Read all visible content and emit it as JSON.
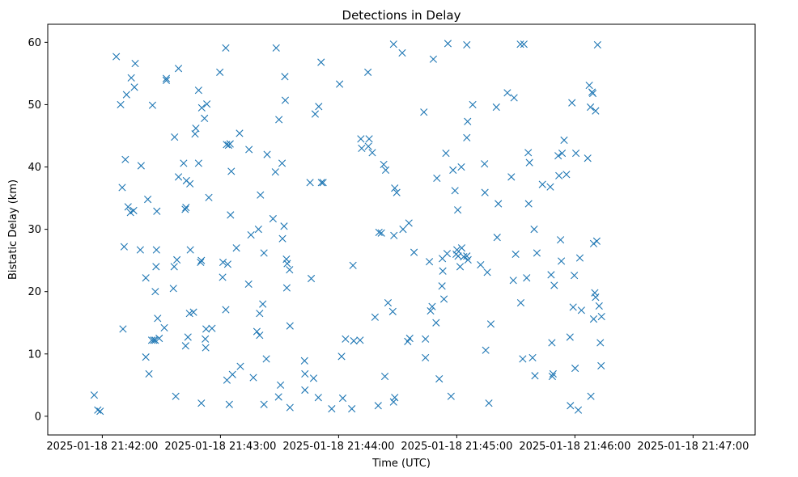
{
  "chart_data": {
    "type": "scatter",
    "title": "Detections in Delay",
    "xlabel": "Time (UTC)",
    "ylabel": "Bistatic Delay (km)",
    "marker": "x",
    "color": "#1f77b4",
    "x_unit": "seconds after 2025-01-18 21:42:00",
    "xlim": [
      -27.7,
      331.5
    ],
    "ylim": [
      -3.0,
      62.9
    ],
    "x_ticks": [
      {
        "value": 0,
        "label": "2025-01-18 21:42:00"
      },
      {
        "value": 60,
        "label": "2025-01-18 21:43:00"
      },
      {
        "value": 120,
        "label": "2025-01-18 21:44:00"
      },
      {
        "value": 180,
        "label": "2025-01-18 21:45:00"
      },
      {
        "value": 240,
        "label": "2025-01-18 21:46:00"
      },
      {
        "value": 300,
        "label": "2025-01-18 21:47:00"
      }
    ],
    "y_ticks": [
      {
        "value": 0,
        "label": "0"
      },
      {
        "value": 10,
        "label": "10"
      },
      {
        "value": 20,
        "label": "20"
      },
      {
        "value": 30,
        "label": "30"
      },
      {
        "value": 40,
        "label": "40"
      },
      {
        "value": 50,
        "label": "50"
      },
      {
        "value": 60,
        "label": "60"
      }
    ],
    "points": [
      [
        -4.1,
        3.4
      ],
      [
        -2.3,
        1.0
      ],
      [
        -1.1,
        0.8
      ],
      [
        7.1,
        57.7
      ],
      [
        9.3,
        50.0
      ],
      [
        10.1,
        36.7
      ],
      [
        10.5,
        14.0
      ],
      [
        11.1,
        27.2
      ],
      [
        11.7,
        41.2
      ],
      [
        12.3,
        51.6
      ],
      [
        13.1,
        33.6
      ],
      [
        14.3,
        32.7
      ],
      [
        14.7,
        54.3
      ],
      [
        15.9,
        33.0
      ],
      [
        16.7,
        56.6
      ],
      [
        16.3,
        52.8
      ],
      [
        19.3,
        26.7
      ],
      [
        19.7,
        40.2
      ],
      [
        22.1,
        9.5
      ],
      [
        22.1,
        22.2
      ],
      [
        23.1,
        34.8
      ],
      [
        23.7,
        6.8
      ],
      [
        25.1,
        12.2
      ],
      [
        25.5,
        49.9
      ],
      [
        26.1,
        12.2
      ],
      [
        26.9,
        12.2
      ],
      [
        26.9,
        20.0
      ],
      [
        27.3,
        24.0
      ],
      [
        27.5,
        26.7
      ],
      [
        27.7,
        32.9
      ],
      [
        28.1,
        15.7
      ],
      [
        28.9,
        12.5
      ],
      [
        31.5,
        14.2
      ],
      [
        32.5,
        54.2
      ],
      [
        32.5,
        53.9
      ],
      [
        36.1,
        20.5
      ],
      [
        36.5,
        24.0
      ],
      [
        36.7,
        44.8
      ],
      [
        37.3,
        3.2
      ],
      [
        37.9,
        25.1
      ],
      [
        38.7,
        38.4
      ],
      [
        38.7,
        55.8
      ],
      [
        41.3,
        40.6
      ],
      [
        42.1,
        33.2
      ],
      [
        42.3,
        11.3
      ],
      [
        42.5,
        33.5
      ],
      [
        42.7,
        37.8
      ],
      [
        43.5,
        12.7
      ],
      [
        44.3,
        16.5
      ],
      [
        44.5,
        37.3
      ],
      [
        44.7,
        26.7
      ],
      [
        46.3,
        16.7
      ],
      [
        47.1,
        45.3
      ],
      [
        47.5,
        46.2
      ],
      [
        48.9,
        40.6
      ],
      [
        48.9,
        52.3
      ],
      [
        49.9,
        24.7
      ],
      [
        50.3,
        2.1
      ],
      [
        50.3,
        25.0
      ],
      [
        50.5,
        49.5
      ],
      [
        51.9,
        47.8
      ],
      [
        52.3,
        12.4
      ],
      [
        52.5,
        11.0
      ],
      [
        52.7,
        14.0
      ],
      [
        53.1,
        50.1
      ],
      [
        54.1,
        35.1
      ],
      [
        55.7,
        14.1
      ],
      [
        59.7,
        55.2
      ],
      [
        61.1,
        22.3
      ],
      [
        61.3,
        24.7
      ],
      [
        62.7,
        17.1
      ],
      [
        62.7,
        59.1
      ],
      [
        63.1,
        43.6
      ],
      [
        63.3,
        5.8
      ],
      [
        63.7,
        24.4
      ],
      [
        64.1,
        43.5
      ],
      [
        64.5,
        1.9
      ],
      [
        64.9,
        43.7
      ],
      [
        65.1,
        32.3
      ],
      [
        65.5,
        39.3
      ],
      [
        66.1,
        6.7
      ],
      [
        68.1,
        27.0
      ],
      [
        69.7,
        45.4
      ],
      [
        70.1,
        8.0
      ],
      [
        74.3,
        21.2
      ],
      [
        74.5,
        42.8
      ],
      [
        75.5,
        29.1
      ],
      [
        76.7,
        6.2
      ],
      [
        78.5,
        13.6
      ],
      [
        79.3,
        30.0
      ],
      [
        79.9,
        16.5
      ],
      [
        79.9,
        13.0
      ],
      [
        80.3,
        35.5
      ],
      [
        81.5,
        18.0
      ],
      [
        82.1,
        1.9
      ],
      [
        82.1,
        26.2
      ],
      [
        83.3,
        9.2
      ],
      [
        83.7,
        42.0
      ],
      [
        86.7,
        31.7
      ],
      [
        87.9,
        39.2
      ],
      [
        88.3,
        59.1
      ],
      [
        89.5,
        3.1
      ],
      [
        89.7,
        47.6
      ],
      [
        90.5,
        5.0
      ],
      [
        91.3,
        40.6
      ],
      [
        91.5,
        28.5
      ],
      [
        92.3,
        30.5
      ],
      [
        92.7,
        54.5
      ],
      [
        92.9,
        50.7
      ],
      [
        93.5,
        25.2
      ],
      [
        93.7,
        20.6
      ],
      [
        93.9,
        24.5
      ],
      [
        95.1,
        23.5
      ],
      [
        95.3,
        14.5
      ],
      [
        95.3,
        1.4
      ],
      [
        102.7,
        8.9
      ],
      [
        102.9,
        4.2
      ],
      [
        102.9,
        6.8
      ],
      [
        105.5,
        37.5
      ],
      [
        106.1,
        22.1
      ],
      [
        107.3,
        6.1
      ],
      [
        108.1,
        48.5
      ],
      [
        109.7,
        3.0
      ],
      [
        109.9,
        49.7
      ],
      [
        111.1,
        56.8
      ],
      [
        111.3,
        37.5
      ],
      [
        112.1,
        37.5
      ],
      [
        116.5,
        1.2
      ],
      [
        120.5,
        53.3
      ],
      [
        121.5,
        9.6
      ],
      [
        122.1,
        2.9
      ],
      [
        123.5,
        12.4
      ],
      [
        126.7,
        1.2
      ],
      [
        127.3,
        24.2
      ],
      [
        127.7,
        12.1
      ],
      [
        130.9,
        12.2
      ],
      [
        131.3,
        44.5
      ],
      [
        131.7,
        43.0
      ],
      [
        134.9,
        55.2
      ],
      [
        135.1,
        43.3
      ],
      [
        135.5,
        44.5
      ],
      [
        137.1,
        42.3
      ],
      [
        138.5,
        15.9
      ],
      [
        140.1,
        1.7
      ],
      [
        140.5,
        29.5
      ],
      [
        141.7,
        29.4
      ],
      [
        142.9,
        40.4
      ],
      [
        143.5,
        6.4
      ],
      [
        143.9,
        39.5
      ],
      [
        145.1,
        18.2
      ],
      [
        147.5,
        16.8
      ],
      [
        147.9,
        59.7
      ],
      [
        147.9,
        2.3
      ],
      [
        148.1,
        29.0
      ],
      [
        148.5,
        3.0
      ],
      [
        148.5,
        36.6
      ],
      [
        149.5,
        35.9
      ],
      [
        152.3,
        58.3
      ],
      [
        152.7,
        30.0
      ],
      [
        155.1,
        12.0
      ],
      [
        155.7,
        31.0
      ],
      [
        156.1,
        12.5
      ],
      [
        158.3,
        26.3
      ],
      [
        163.3,
        48.8
      ],
      [
        164.1,
        12.4
      ],
      [
        164.1,
        9.4
      ],
      [
        166.1,
        24.8
      ],
      [
        166.7,
        16.9
      ],
      [
        167.5,
        17.6
      ],
      [
        168.1,
        57.3
      ],
      [
        169.5,
        15.0
      ],
      [
        169.9,
        38.2
      ],
      [
        171.1,
        6.0
      ],
      [
        172.5,
        20.9
      ],
      [
        172.7,
        25.3
      ],
      [
        172.9,
        23.3
      ],
      [
        173.5,
        18.8
      ],
      [
        174.5,
        42.2
      ],
      [
        175.1,
        26.1
      ],
      [
        175.5,
        59.8
      ],
      [
        177.1,
        3.2
      ],
      [
        178.1,
        39.5
      ],
      [
        179.1,
        36.2
      ],
      [
        179.7,
        26.0
      ],
      [
        180.1,
        26.7
      ],
      [
        180.5,
        33.1
      ],
      [
        180.7,
        25.7
      ],
      [
        181.7,
        24.0
      ],
      [
        182.3,
        40.0
      ],
      [
        182.5,
        27.0
      ],
      [
        183.5,
        25.6
      ],
      [
        185.1,
        59.6
      ],
      [
        185.1,
        44.7
      ],
      [
        185.1,
        25.7
      ],
      [
        185.5,
        47.3
      ],
      [
        185.7,
        25.1
      ],
      [
        188.1,
        50.0
      ],
      [
        192.1,
        24.3
      ],
      [
        194.1,
        40.5
      ],
      [
        194.3,
        35.9
      ],
      [
        194.7,
        10.6
      ],
      [
        195.5,
        23.1
      ],
      [
        196.3,
        2.1
      ],
      [
        197.3,
        14.8
      ],
      [
        200.1,
        49.6
      ],
      [
        200.5,
        28.7
      ],
      [
        201.1,
        34.1
      ],
      [
        205.7,
        51.9
      ],
      [
        207.7,
        38.4
      ],
      [
        208.7,
        21.8
      ],
      [
        209.1,
        51.1
      ],
      [
        209.9,
        26.0
      ],
      [
        212.3,
        59.7
      ],
      [
        212.5,
        18.2
      ],
      [
        213.5,
        9.2
      ],
      [
        214.1,
        59.7
      ],
      [
        215.5,
        22.2
      ],
      [
        216.3,
        42.3
      ],
      [
        216.5,
        34.1
      ],
      [
        216.9,
        40.7
      ],
      [
        218.5,
        9.4
      ],
      [
        219.3,
        30.0
      ],
      [
        219.7,
        6.5
      ],
      [
        220.7,
        26.2
      ],
      [
        223.5,
        37.2
      ],
      [
        227.5,
        36.8
      ],
      [
        227.9,
        22.7
      ],
      [
        228.3,
        11.8
      ],
      [
        228.5,
        6.4
      ],
      [
        228.9,
        6.8
      ],
      [
        229.5,
        21.0
      ],
      [
        231.5,
        41.8
      ],
      [
        231.9,
        38.6
      ],
      [
        232.7,
        28.3
      ],
      [
        233.1,
        24.9
      ],
      [
        233.5,
        42.2
      ],
      [
        234.5,
        44.3
      ],
      [
        235.7,
        38.8
      ],
      [
        237.5,
        12.7
      ],
      [
        237.7,
        1.7
      ],
      [
        238.5,
        50.3
      ],
      [
        239.1,
        17.5
      ],
      [
        239.7,
        22.6
      ],
      [
        240.1,
        7.7
      ],
      [
        240.5,
        42.2
      ],
      [
        241.7,
        1.0
      ],
      [
        242.5,
        25.4
      ],
      [
        243.3,
        17.0
      ],
      [
        246.5,
        41.4
      ],
      [
        247.3,
        53.1
      ],
      [
        247.9,
        49.6
      ],
      [
        248.1,
        3.2
      ],
      [
        248.7,
        52.0
      ],
      [
        249.1,
        51.8
      ],
      [
        249.5,
        15.6
      ],
      [
        249.5,
        27.7
      ],
      [
        250.1,
        19.8
      ],
      [
        250.5,
        49.0
      ],
      [
        250.5,
        19.1
      ],
      [
        251.1,
        28.1
      ],
      [
        251.5,
        59.6
      ],
      [
        252.3,
        17.7
      ],
      [
        252.9,
        11.8
      ],
      [
        253.3,
        8.1
      ],
      [
        253.5,
        16.0
      ]
    ]
  }
}
